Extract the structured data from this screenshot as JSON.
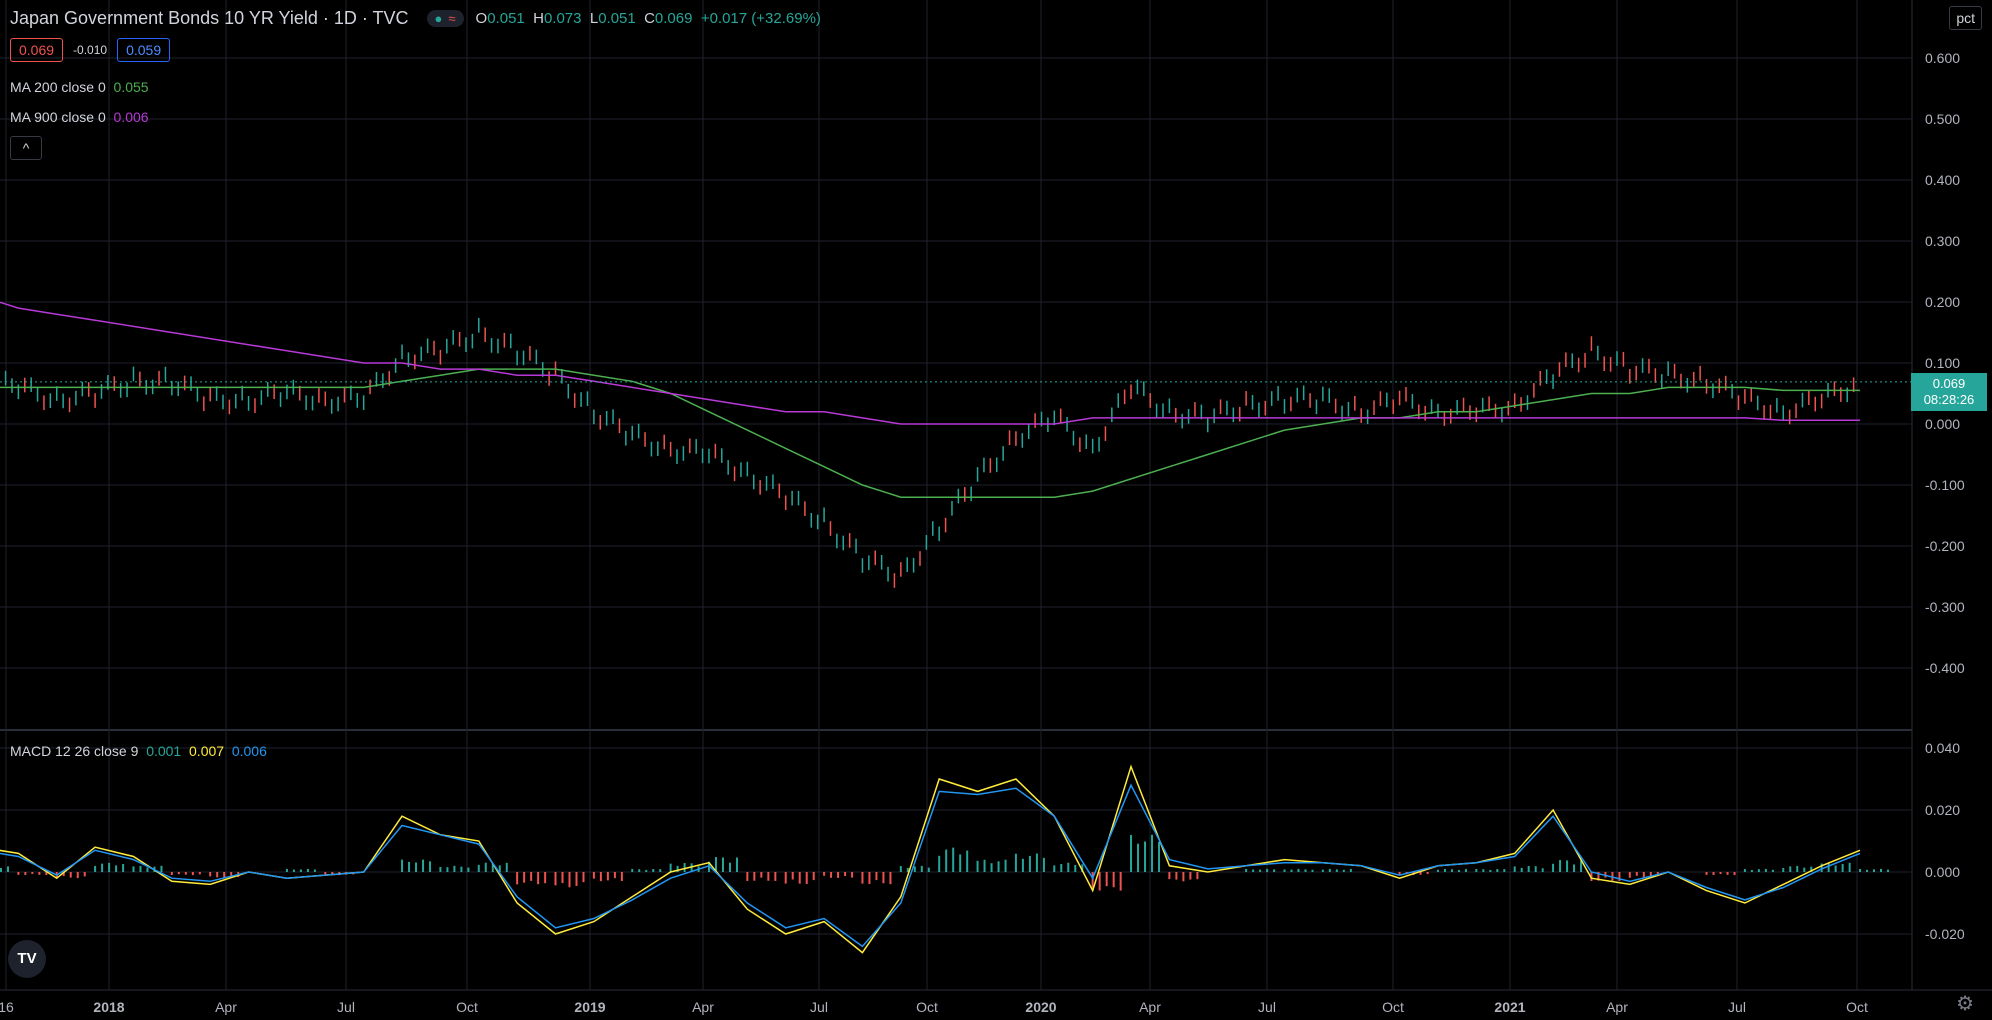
{
  "header": {
    "title": "Japan Government Bonds 10 YR Yield · 1D · TVC",
    "status_icons": [
      "live-dot-icon",
      "wave-icon"
    ],
    "ohlc": {
      "o_label": "O",
      "o": "0.051",
      "h_label": "H",
      "h": "0.073",
      "l_label": "L",
      "l": "0.051",
      "c_label": "C",
      "c": "0.069",
      "change": "+0.017 (+32.69%)"
    },
    "bid": "0.069",
    "spread": "-0.010",
    "ask": "0.059",
    "collapse_glyph": "^"
  },
  "indicators": {
    "ma200": {
      "label": "MA 200 close 0",
      "value": "0.055",
      "color": "#4caf50"
    },
    "ma900": {
      "label": "MA 900 close 0",
      "value": "0.006",
      "color": "#b739d6"
    },
    "macd": {
      "label": "MACD 12 26 close 9",
      "v1": "0.001",
      "v2": "0.007",
      "v3": "0.006",
      "colors": [
        "#26a69a",
        "#ffeb3b",
        "#2196f3"
      ]
    }
  },
  "scale_button": "pct",
  "last_price_tag": {
    "price": "0.069",
    "countdown": "08:28:26"
  },
  "settings_icon": "gear-icon",
  "logo": "TV",
  "chart_data": [
    {
      "type": "line",
      "name_on_chart": "Japan Government Bonds 10 YR Yield",
      "y_ticks": [
        "0.600",
        "0.500",
        "0.400",
        "0.300",
        "0.200",
        "0.100",
        "0.000",
        "-0.100",
        "-0.200",
        "-0.300",
        "-0.400"
      ],
      "ylim": [
        -0.48,
        0.64
      ],
      "x_tick_labels": [
        "16",
        "2018",
        "Apr",
        "Jul",
        "Oct",
        "2019",
        "Apr",
        "Jul",
        "Oct",
        "2020",
        "Apr",
        "Jul",
        "Oct",
        "2021",
        "Apr",
        "Jul",
        "Oct"
      ],
      "x_ticks_year": [
        "2018",
        "2019",
        "2020",
        "2021"
      ],
      "x": [
        "2017-09",
        "2017-10",
        "2017-11",
        "2017-12",
        "2018-01",
        "2018-02",
        "2018-03",
        "2018-04",
        "2018-05",
        "2018-06",
        "2018-07",
        "2018-08",
        "2018-09",
        "2018-10",
        "2018-11",
        "2018-12",
        "2019-01",
        "2019-02",
        "2019-03",
        "2019-04",
        "2019-05",
        "2019-06",
        "2019-07",
        "2019-08",
        "2019-09",
        "2019-10",
        "2019-11",
        "2019-12",
        "2020-01",
        "2020-02",
        "2020-03",
        "2020-04",
        "2020-05",
        "2020-06",
        "2020-07",
        "2020-08",
        "2020-09",
        "2020-10",
        "2020-11",
        "2020-12",
        "2021-01",
        "2021-02",
        "2021-03",
        "2021-04",
        "2021-05",
        "2021-06",
        "2021-07",
        "2021-08",
        "2021-09",
        "2021-10"
      ],
      "series": [
        {
          "name": "Japan Government Bonds 10 YR Yield",
          "color": "#26a69a",
          "values": [
            0.07,
            0.06,
            0.04,
            0.05,
            0.07,
            0.07,
            0.04,
            0.04,
            0.05,
            0.04,
            0.04,
            0.11,
            0.12,
            0.15,
            0.12,
            0.08,
            0.02,
            -0.02,
            -0.04,
            -0.05,
            -0.08,
            -0.12,
            -0.16,
            -0.22,
            -0.25,
            -0.17,
            -0.09,
            -0.02,
            0.01,
            -0.04,
            0.06,
            0.02,
            0.01,
            0.03,
            0.04,
            0.04,
            0.02,
            0.04,
            0.02,
            0.02,
            0.03,
            0.08,
            0.12,
            0.09,
            0.08,
            0.07,
            0.04,
            0.02,
            0.04,
            0.069
          ]
        },
        {
          "name": "MA 200 close 0",
          "color": "#4caf50",
          "values": [
            0.06,
            0.06,
            0.06,
            0.06,
            0.06,
            0.06,
            0.06,
            0.06,
            0.06,
            0.06,
            0.06,
            0.07,
            0.08,
            0.09,
            0.09,
            0.09,
            0.08,
            0.07,
            0.05,
            0.02,
            -0.01,
            -0.04,
            -0.07,
            -0.1,
            -0.12,
            -0.12,
            -0.12,
            -0.12,
            -0.12,
            -0.11,
            -0.09,
            -0.07,
            -0.05,
            -0.03,
            -0.01,
            0.0,
            0.01,
            0.01,
            0.02,
            0.02,
            0.03,
            0.04,
            0.05,
            0.05,
            0.06,
            0.06,
            0.06,
            0.055,
            0.055,
            0.055
          ]
        },
        {
          "name": "MA 900 close 0",
          "color": "#b739d6",
          "values": [
            0.21,
            0.19,
            0.18,
            0.17,
            0.16,
            0.15,
            0.14,
            0.13,
            0.12,
            0.11,
            0.1,
            0.1,
            0.09,
            0.09,
            0.08,
            0.08,
            0.07,
            0.06,
            0.05,
            0.04,
            0.03,
            0.02,
            0.02,
            0.01,
            0.0,
            0.0,
            0.0,
            0.0,
            0.0,
            0.01,
            0.01,
            0.01,
            0.01,
            0.01,
            0.01,
            0.01,
            0.01,
            0.01,
            0.01,
            0.01,
            0.01,
            0.01,
            0.01,
            0.01,
            0.01,
            0.01,
            0.01,
            0.006,
            0.006,
            0.006
          ]
        }
      ]
    },
    {
      "type": "line",
      "title": "MACD 12 26 close 9",
      "y_ticks": [
        "0.040",
        "0.020",
        "0.000",
        "-0.020"
      ],
      "ylim": [
        -0.038,
        0.042
      ],
      "x": [
        "2017-09",
        "2017-10",
        "2017-11",
        "2017-12",
        "2018-01",
        "2018-02",
        "2018-03",
        "2018-04",
        "2018-05",
        "2018-06",
        "2018-07",
        "2018-08",
        "2018-09",
        "2018-10",
        "2018-11",
        "2018-12",
        "2019-01",
        "2019-02",
        "2019-03",
        "2019-04",
        "2019-05",
        "2019-06",
        "2019-07",
        "2019-08",
        "2019-09",
        "2019-10",
        "2019-11",
        "2019-12",
        "2020-01",
        "2020-02",
        "2020-03",
        "2020-04",
        "2020-05",
        "2020-06",
        "2020-07",
        "2020-08",
        "2020-09",
        "2020-10",
        "2020-11",
        "2020-12",
        "2021-01",
        "2021-02",
        "2021-03",
        "2021-04",
        "2021-05",
        "2021-06",
        "2021-07",
        "2021-08",
        "2021-09",
        "2021-10"
      ],
      "series": [
        {
          "name": "histogram",
          "color": "#26a69a",
          "values": [
            0.002,
            -0.001,
            -0.002,
            0.003,
            0.002,
            -0.001,
            -0.002,
            0.0,
            0.001,
            -0.001,
            0.0,
            0.004,
            0.002,
            0.003,
            -0.004,
            -0.005,
            -0.003,
            0.001,
            0.003,
            0.005,
            -0.003,
            -0.004,
            -0.002,
            -0.004,
            0.002,
            0.008,
            0.004,
            0.006,
            0.003,
            -0.006,
            0.012,
            -0.003,
            0.0,
            0.001,
            0.001,
            0.001,
            0.0,
            -0.001,
            0.001,
            0.001,
            0.002,
            0.004,
            -0.003,
            -0.002,
            0.0,
            -0.001,
            0.001,
            0.002,
            0.003,
            0.001
          ]
        },
        {
          "name": "MACD",
          "color": "#ffeb3b",
          "values": [
            0.008,
            0.006,
            -0.002,
            0.008,
            0.005,
            -0.003,
            -0.004,
            0.0,
            -0.002,
            -0.001,
            0.0,
            0.018,
            0.012,
            0.01,
            -0.01,
            -0.02,
            -0.016,
            -0.008,
            0.0,
            0.003,
            -0.012,
            -0.02,
            -0.016,
            -0.026,
            -0.008,
            0.03,
            0.026,
            0.03,
            0.018,
            -0.006,
            0.034,
            0.002,
            0.0,
            0.002,
            0.004,
            0.003,
            0.002,
            -0.002,
            0.002,
            0.003,
            0.006,
            0.02,
            -0.002,
            -0.004,
            0.0,
            -0.006,
            -0.01,
            -0.004,
            0.002,
            0.007
          ]
        },
        {
          "name": "Signal",
          "color": "#2196f3",
          "values": [
            0.007,
            0.005,
            -0.001,
            0.007,
            0.004,
            -0.002,
            -0.003,
            0.0,
            -0.002,
            -0.001,
            0.0,
            0.015,
            0.012,
            0.009,
            -0.008,
            -0.018,
            -0.015,
            -0.009,
            -0.002,
            0.002,
            -0.01,
            -0.018,
            -0.015,
            -0.024,
            -0.01,
            0.026,
            0.025,
            0.027,
            0.018,
            -0.002,
            0.028,
            0.004,
            0.001,
            0.002,
            0.003,
            0.003,
            0.002,
            -0.001,
            0.002,
            0.003,
            0.005,
            0.018,
            0.0,
            -0.003,
            0.0,
            -0.005,
            -0.009,
            -0.005,
            0.001,
            0.006
          ]
        }
      ]
    }
  ]
}
